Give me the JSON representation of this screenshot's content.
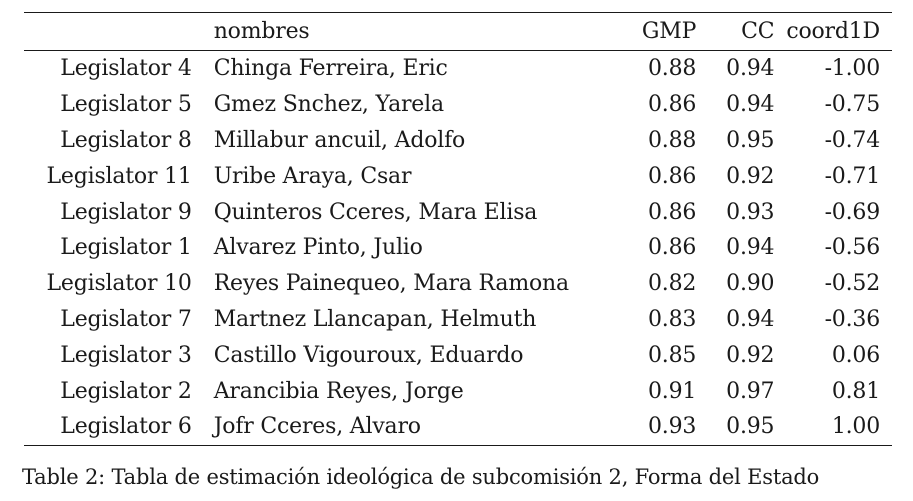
{
  "table": {
    "headers": {
      "legislator": "",
      "nombres": "nombres",
      "gmp": "GMP",
      "cc": "CC",
      "coord1d": "coord1D"
    },
    "rows": [
      {
        "legislator": "Legislator 4",
        "nombres": "Chinga Ferreira, Eric",
        "gmp": "0.88",
        "cc": "0.94",
        "coord1d": "-1.00"
      },
      {
        "legislator": "Legislator 5",
        "nombres": "Gmez Snchez, Yarela",
        "gmp": "0.86",
        "cc": "0.94",
        "coord1d": "-0.75"
      },
      {
        "legislator": "Legislator 8",
        "nombres": "Millabur ancuil, Adolfo",
        "gmp": "0.88",
        "cc": "0.95",
        "coord1d": "-0.74"
      },
      {
        "legislator": "Legislator 11",
        "nombres": "Uribe Araya, Csar",
        "gmp": "0.86",
        "cc": "0.92",
        "coord1d": "-0.71"
      },
      {
        "legislator": "Legislator 9",
        "nombres": "Quinteros Cceres, Mara Elisa",
        "gmp": "0.86",
        "cc": "0.93",
        "coord1d": "-0.69"
      },
      {
        "legislator": "Legislator 1",
        "nombres": "Alvarez Pinto, Julio",
        "gmp": "0.86",
        "cc": "0.94",
        "coord1d": "-0.56"
      },
      {
        "legislator": "Legislator 10",
        "nombres": "Reyes Painequeo, Mara Ramona",
        "gmp": "0.82",
        "cc": "0.90",
        "coord1d": "-0.52"
      },
      {
        "legislator": "Legislator 7",
        "nombres": "Martnez Llancapan, Helmuth",
        "gmp": "0.83",
        "cc": "0.94",
        "coord1d": "-0.36"
      },
      {
        "legislator": "Legislator 3",
        "nombres": "Castillo Vigouroux, Eduardo",
        "gmp": "0.85",
        "cc": "0.92",
        "coord1d": "0.06"
      },
      {
        "legislator": "Legislator 2",
        "nombres": "Arancibia Reyes, Jorge",
        "gmp": "0.91",
        "cc": "0.97",
        "coord1d": "0.81"
      },
      {
        "legislator": "Legislator 6",
        "nombres": "Jofr Cceres, Alvaro",
        "gmp": "0.93",
        "cc": "0.95",
        "coord1d": "1.00"
      }
    ]
  },
  "caption": "Table 2: Tabla de estimación ideológica de subcomisión 2, Forma del Estado"
}
